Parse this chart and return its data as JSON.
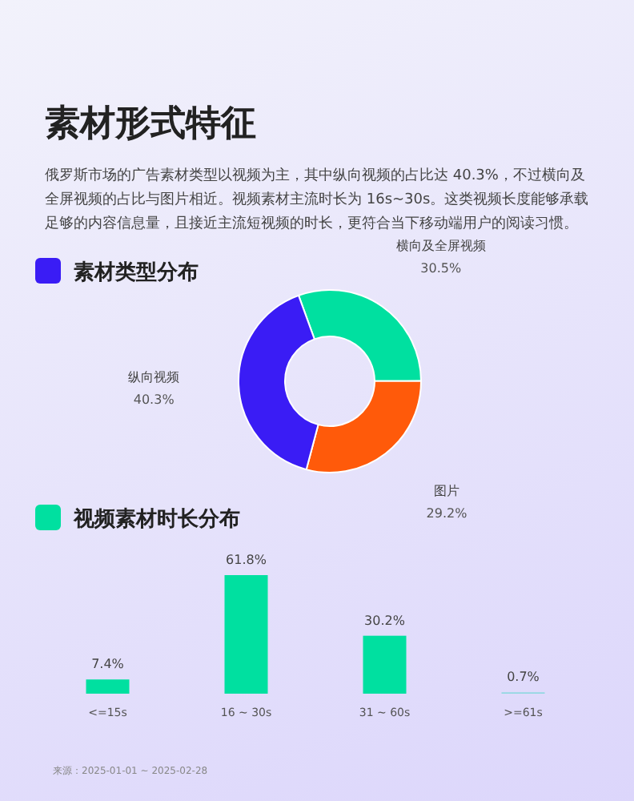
{
  "chart_data": [
    {
      "type": "donut",
      "title": "素材类型分布",
      "annotations": [
        "素材形式特征",
        "俄罗斯市场的广告素材类型以视频为主，其中纵向视频的占比达 40.3%，不过横向及全屏视频的占比与图片相近。视频素材主流时长为 16s~30s。这类视频长度能够承载足够的内容信息量，且接近主流短视频的时长，更符合当下移动端用户的阅读习惯。"
      ],
      "categories": [
        "横向及全屏视频",
        "图片",
        "纵向视频"
      ],
      "values": [
        30.5,
        29.2,
        40.3
      ],
      "colors": [
        "#00e0a0",
        "#ff5a0a",
        "#3a1cf5"
      ],
      "value_labels": [
        "30.5%",
        "29.2%",
        "40.3%"
      ]
    },
    {
      "type": "bar",
      "title": "视频素材时长分布",
      "annotations": [
        "来源：2025-01-01 ~ 2025-02-28"
      ],
      "categories": [
        "<=15s",
        "16 ~ 30s",
        "31 ~ 60s",
        ">=61s"
      ],
      "values": [
        7.4,
        61.8,
        30.2,
        0.7
      ],
      "colors": [
        "#00e0a0",
        "#00e0a0",
        "#00e0a0",
        "#8fd8e0"
      ],
      "value_labels": [
        "7.4%",
        "61.8%",
        "30.2%",
        "0.7%"
      ]
    }
  ]
}
